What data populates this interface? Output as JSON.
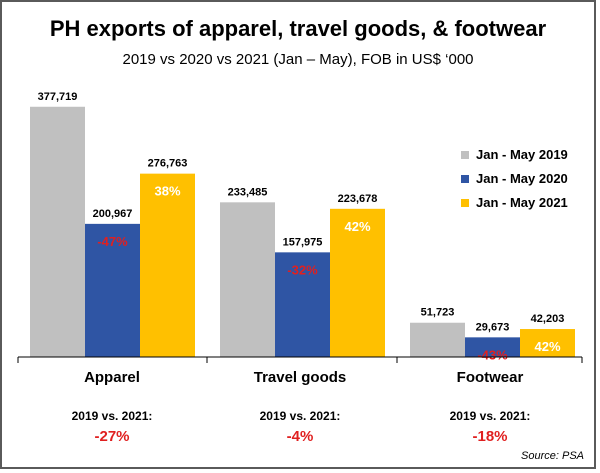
{
  "chart_data": {
    "type": "bar",
    "title": "PH exports of apparel, travel goods, & footwear",
    "subtitle": "2019 vs 2020 vs 2021 (Jan – May),  FOB in US$ ‘000",
    "categories": [
      "Apparel",
      "Travel goods",
      "Footwear"
    ],
    "series": [
      {
        "name": "Jan - May 2019",
        "color": "#c0c0c0",
        "values": [
          377719,
          233485,
          51723
        ],
        "value_labels": [
          "377,719",
          "233,485",
          "51,723"
        ],
        "pct_labels": [
          "",
          "",
          ""
        ],
        "pct_color": ""
      },
      {
        "name": "Jan - May 2020",
        "color": "#2f55a4",
        "values": [
          200967,
          157975,
          29673
        ],
        "value_labels": [
          "200,967",
          "157,975",
          "29,673"
        ],
        "pct_labels": [
          "-47%",
          "-32%",
          "-43%"
        ],
        "pct_color": "#e02020"
      },
      {
        "name": "Jan - May 2021",
        "color": "#ffc000",
        "values": [
          276763,
          223678,
          42203
        ],
        "value_labels": [
          "276,763",
          "223,678",
          "42,203"
        ],
        "pct_labels": [
          "38%",
          "42%",
          "42%"
        ],
        "pct_color": "#ffffff"
      }
    ],
    "comparisons": [
      {
        "label": "2019 vs. 2021:",
        "value": "-27%"
      },
      {
        "label": "2019 vs. 2021:",
        "value": "-4%"
      },
      {
        "label": "2019 vs. 2021:",
        "value": "-18%"
      }
    ],
    "ylim": [
      0,
      400000
    ],
    "grid": false,
    "legend_position": "right",
    "source": "Source: PSA"
  }
}
